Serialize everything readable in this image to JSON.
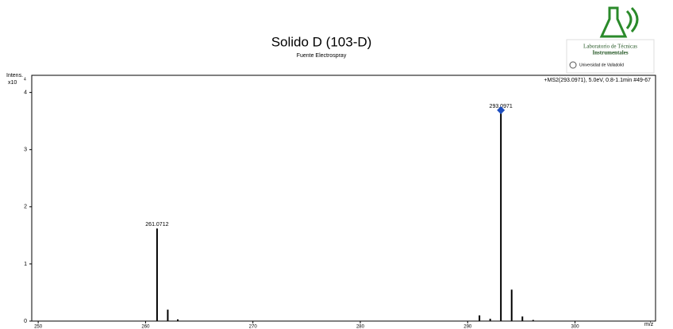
{
  "chart_data": {
    "type": "bar",
    "title": "Solido D (103-D)",
    "subtitle": "Fuente Electrospray",
    "annotation": "+MS2(293.0971), 5.0eV, 0.8-1.1min #49-67",
    "y_label": "Intens.",
    "y_scale": {
      "base": "x10",
      "exponent": "4"
    },
    "x_label": "m/z",
    "x": [
      261.0712,
      262.07,
      263.0,
      291.1,
      292.1,
      293.0971,
      294.1,
      295.1,
      296.1
    ],
    "values": [
      1.62,
      0.2,
      0.03,
      0.1,
      0.04,
      3.69,
      0.55,
      0.08,
      0.02
    ],
    "peak_labels": [
      "261.0712",
      null,
      null,
      null,
      null,
      "293.0971",
      null,
      null,
      null
    ],
    "color": "#000000",
    "marker": {
      "x": 293.0971,
      "color": "#1f4fbf"
    },
    "xlim": [
      249.4,
      307.5
    ],
    "xticks": [
      250,
      260,
      270,
      280,
      290,
      300
    ],
    "ylim": [
      0,
      4.3
    ],
    "yticks": [
      0,
      1,
      2,
      3,
      4
    ]
  },
  "logo": {
    "line1": "Laboratorio de Técnicas",
    "line2": "Instrumentales",
    "line3": "Universidad de Valladolid"
  }
}
